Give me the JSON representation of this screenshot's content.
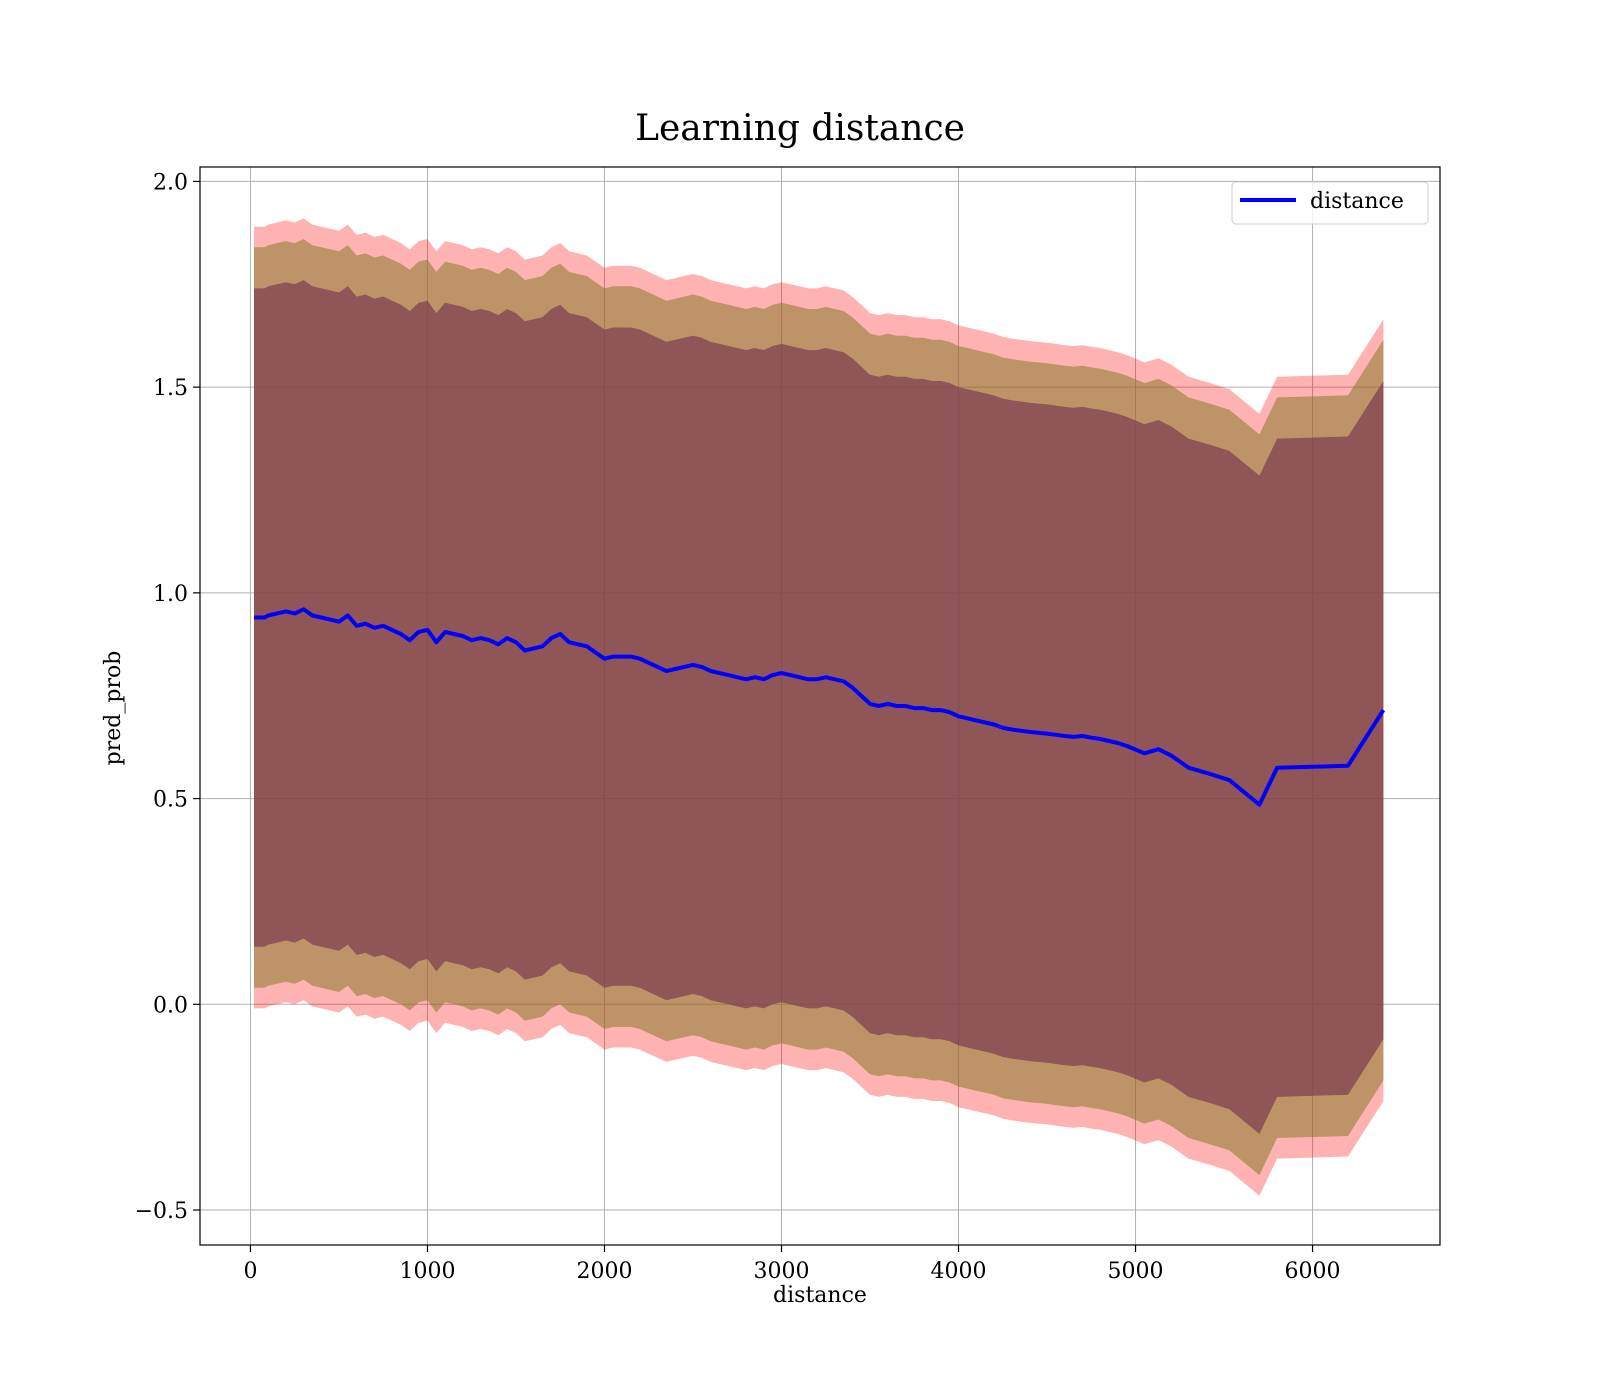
{
  "chart_data": {
    "type": "line",
    "title": "Learning distance",
    "xlabel": "distance",
    "ylabel": "pred_prob",
    "xlim": [
      -285,
      6720
    ],
    "ylim": [
      -0.585,
      2.035
    ],
    "xticks": [
      0,
      1000,
      2000,
      3000,
      4000,
      5000,
      6000
    ],
    "yticks": [
      -0.5,
      0.0,
      0.5,
      1.0,
      1.5,
      2.0
    ],
    "xtick_labels": [
      "0",
      "1000",
      "2000",
      "3000",
      "4000",
      "5000",
      "6000"
    ],
    "ytick_labels": [
      "−0.5",
      "0.0",
      "0.5",
      "1.0",
      "1.5",
      "2.0"
    ],
    "grid": true,
    "legend": {
      "position": "top-right",
      "entries": [
        "distance"
      ]
    },
    "colors": {
      "line": "#0000ff",
      "band_outer": "#ff0000",
      "band_middle": "#8b7a2b",
      "band_inner": "#7a3b50"
    },
    "band_widths": {
      "outer": 0.95,
      "middle": 0.9,
      "inner": 0.8
    },
    "series": [
      {
        "name": "distance",
        "x": [
          20,
          80,
          100,
          150,
          200,
          250,
          300,
          350,
          400,
          450,
          500,
          550,
          600,
          650,
          700,
          750,
          800,
          850,
          900,
          950,
          1000,
          1050,
          1100,
          1150,
          1200,
          1250,
          1300,
          1350,
          1400,
          1450,
          1500,
          1550,
          1600,
          1650,
          1700,
          1750,
          1800,
          1850,
          1900,
          1950,
          2000,
          2050,
          2100,
          2150,
          2200,
          2250,
          2300,
          2350,
          2400,
          2450,
          2500,
          2550,
          2600,
          2650,
          2700,
          2750,
          2800,
          2850,
          2900,
          2950,
          3000,
          3050,
          3100,
          3150,
          3200,
          3250,
          3300,
          3350,
          3400,
          3450,
          3500,
          3550,
          3600,
          3650,
          3700,
          3750,
          3800,
          3850,
          3900,
          3950,
          4000,
          4050,
          4100,
          4150,
          4200,
          4250,
          4300,
          4350,
          4400,
          4450,
          4500,
          4550,
          4600,
          4650,
          4700,
          4750,
          4800,
          4850,
          4900,
          4950,
          5050,
          5130,
          5200,
          5300,
          5420,
          5530,
          5700,
          5800,
          6200,
          6400
        ],
        "y": [
          0.94,
          0.94,
          0.945,
          0.95,
          0.955,
          0.95,
          0.96,
          0.945,
          0.94,
          0.935,
          0.93,
          0.945,
          0.92,
          0.925,
          0.915,
          0.92,
          0.91,
          0.9,
          0.885,
          0.905,
          0.91,
          0.88,
          0.905,
          0.9,
          0.895,
          0.885,
          0.89,
          0.885,
          0.875,
          0.89,
          0.88,
          0.86,
          0.865,
          0.87,
          0.89,
          0.9,
          0.88,
          0.875,
          0.87,
          0.855,
          0.84,
          0.845,
          0.845,
          0.845,
          0.84,
          0.83,
          0.82,
          0.81,
          0.815,
          0.82,
          0.825,
          0.82,
          0.81,
          0.805,
          0.8,
          0.795,
          0.79,
          0.795,
          0.79,
          0.8,
          0.805,
          0.8,
          0.795,
          0.79,
          0.79,
          0.795,
          0.79,
          0.785,
          0.77,
          0.75,
          0.73,
          0.725,
          0.73,
          0.725,
          0.725,
          0.72,
          0.72,
          0.715,
          0.715,
          0.71,
          0.7,
          0.695,
          0.69,
          0.685,
          0.68,
          0.672,
          0.668,
          0.665,
          0.662,
          0.66,
          0.658,
          0.655,
          0.652,
          0.65,
          0.652,
          0.648,
          0.645,
          0.64,
          0.635,
          0.628,
          0.61,
          0.62,
          0.605,
          0.575,
          0.56,
          0.545,
          0.485,
          0.575,
          0.58,
          0.715
        ]
      }
    ]
  }
}
